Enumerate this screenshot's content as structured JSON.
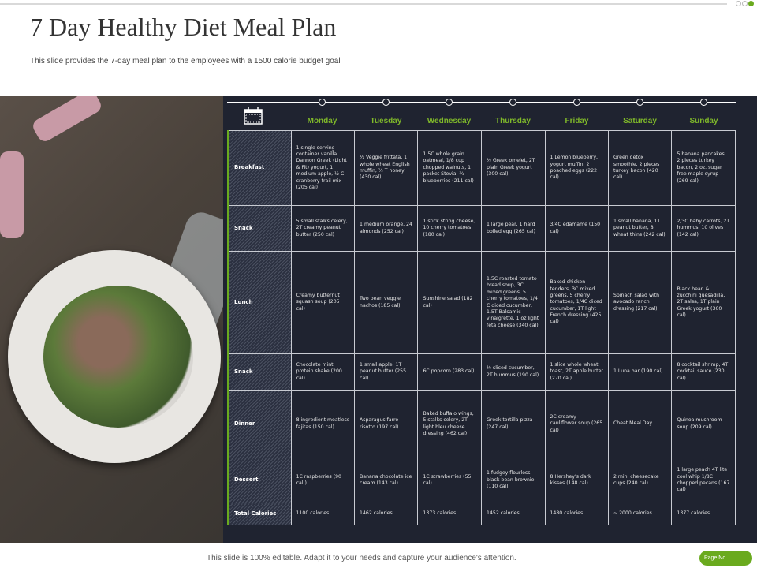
{
  "header": {
    "title": "7 Day Healthy Diet Meal Plan",
    "subtitle": "This slide provides the 7-day meal plan to the employees with a 1500 calorie budget goal"
  },
  "colors": {
    "accent": "#6aaa1e",
    "panel": "#1f2330"
  },
  "days": [
    "Monday",
    "Tuesday",
    "Wednesday",
    "Thursday",
    "Friday",
    "Saturday",
    "Sunday"
  ],
  "rows": [
    {
      "label": "Breakfast",
      "cells": [
        "1 single serving container vanilla Dannon Greek (Light & Fit) yogurt, 1 medium apple, ½ C cranberry trail mix (205 cal)",
        "½ Veggie frittata, 1 whole wheat English muffin, ½ T honey (430 cal)",
        "1.5C whole grain oatmeal, 1/8 cup chopped walnuts, 1 packet Stevia, ¾ blueberries (211 cal)",
        "½ Greek omelet, 2T plain Greek yogurt (300 cal)",
        "1 Lemon blueberry, yogurt muffin, 2 poached eggs (222 cal)",
        "Green detox smoothie, 2 pieces turkey bacon (420 cal)",
        "5 banana pancakes, 2 pieces turkey bacon, 2 oz. sugar free maple syrup (269 cal)"
      ]
    },
    {
      "label": "Snack",
      "cells": [
        "5 small stalks celery, 2T creamy peanut butter (250 cal)",
        "1 medium orange, 24 almonds (252 cal)",
        "1 stick string cheese, 10 cherry tomatoes (180 cal)",
        "1 large pear, 1 hard boiled egg (265 cal)",
        "3/4C edamame (150 cal)",
        "1 small banana, 1T peanut butter, 8 wheat thins (242 cal)",
        "2/3C baby carrots, 2T hummus, 10 olives (142 cal)"
      ]
    },
    {
      "label": "Lunch",
      "cells": [
        "Creamy butternut squash soup (205 cal)",
        "Two bean veggie nachos (185 cal)",
        "Sunshine salad (182 cal)",
        "1.5C roasted tomato bread soup, 3C mixed greens, 5 cherry tomatoes, 1/4 C diced cucumber, 1.5T Balsamic vinaigrette, 1 oz light feta cheese (340 cal)",
        "Baked chicken tenders, 3C mixed greens, 5 cherry tomatoes, 1/4C diced cucumber, 1T light French dressing (425 cal)",
        "Spinach salad with avocado ranch dressing (217 cal)",
        "Black bean & zucchini quesadilla, 2T salsa, 1T plain Greek yogurt (360 cal)"
      ]
    },
    {
      "label": "Snack",
      "cells": [
        "Chocolate mint protein shake (200 cal)",
        "1 small apple, 1T peanut butter (255 cal)",
        "6C popcorn (283 cal)",
        "½ sliced cucumber, 2T hummus (190 cal)",
        "1 slice whole wheat toast, 2T apple butter (270 cal)",
        "1 Luna bar (190 cal)",
        "8 cocktail shrimp, 4T cocktail sauce (230 cal)"
      ]
    },
    {
      "label": "Dinner",
      "cells": [
        "8 ingredient meatless fajitas (150 cal)",
        "Asparagus farro risotto (197 cal)",
        "Baked buffalo wings, 5 stalks celery, 2T light bleu cheese dressing (462 cal)",
        "Greek tortilla pizza (247 cal)",
        "2C creamy cauliflower soup (265 cal)",
        "Cheat Meal Day",
        "Quinoa mushroom soup (209 cal)"
      ]
    },
    {
      "label": "Dessert",
      "cells": [
        "1C raspberries (90 cal )",
        "Banana chocolate ice cream (143 cal)",
        "1C strawberries (55 cal)",
        "1 fudgey flourless black bean brownie (110 cal)",
        "8 Hershey's dark kisses (148 cal)",
        "2 mini cheesecake cups (240 cal)",
        "1 large peach 4T lite cool whip 1/8C chopped pecans (167 cal)"
      ]
    },
    {
      "label": "Total Calories",
      "cells": [
        "1100 calories",
        "1462 calories",
        "1373 calories",
        "1452 calories",
        "1480 calories",
        "~ 2000 calories",
        "1377 calories"
      ]
    }
  ],
  "footer": {
    "text": "This slide is 100% editable. Adapt it to your needs and capture your audience's attention.",
    "page": "Page No."
  }
}
